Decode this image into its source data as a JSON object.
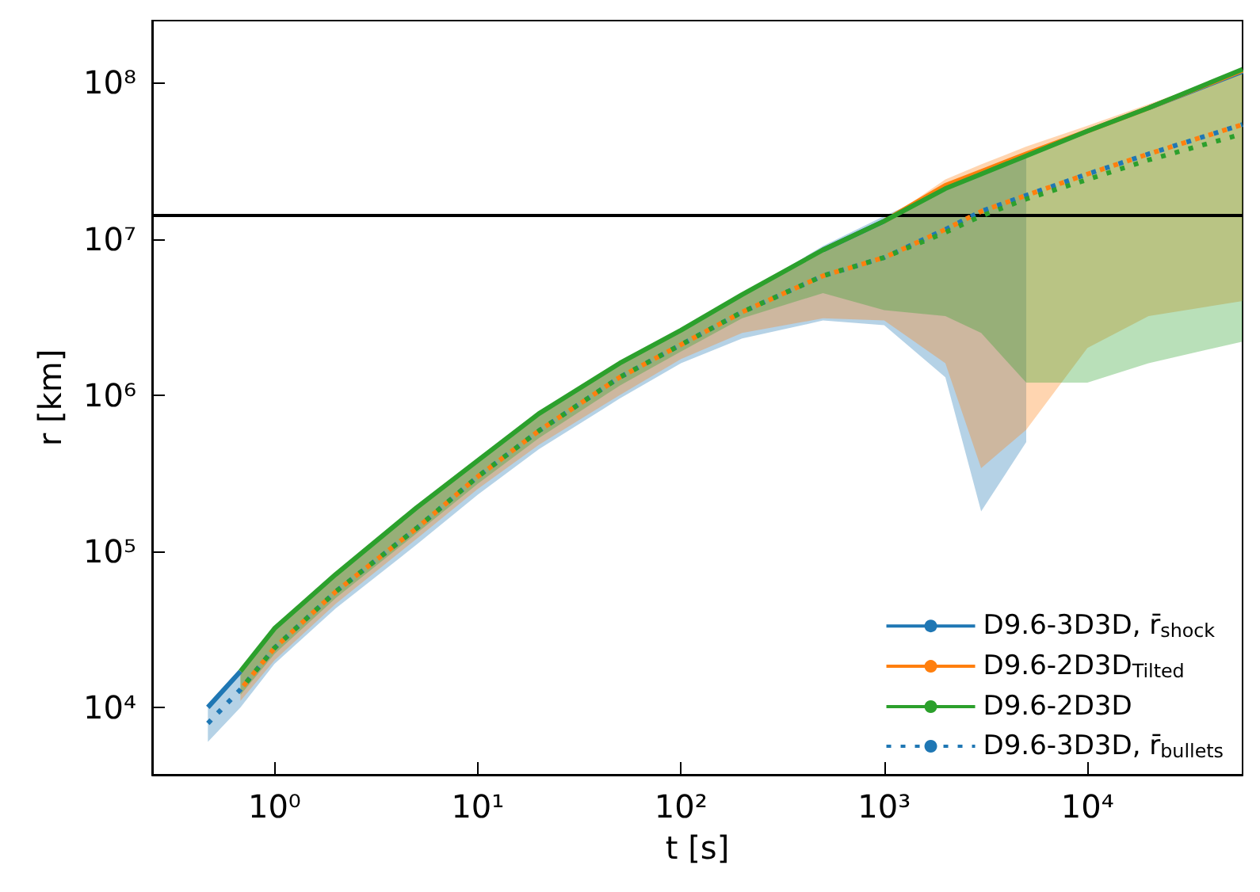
{
  "chart_data": {
    "type": "line",
    "xlabel": "t [s]",
    "ylabel": "r [km]",
    "log": "xy",
    "grid": false,
    "legend": "bottom right",
    "marker": "none",
    "x": [
      0.47,
      0.68,
      1,
      2,
      5,
      10,
      20,
      50,
      100,
      200,
      500,
      1000,
      2000,
      3000,
      5000,
      10000,
      20000,
      58000
    ],
    "xlim": [
      0.25,
      58000
    ],
    "ylim": [
      3700,
      250000000
    ],
    "xticks": [
      {
        "value": 1,
        "label": "10⁰"
      },
      {
        "value": 10,
        "label": "10¹"
      },
      {
        "value": 100,
        "label": "10²"
      },
      {
        "value": 1000,
        "label": "10³"
      },
      {
        "value": 10000,
        "label": "10⁴"
      }
    ],
    "yticks": [
      {
        "value": 10000,
        "label": "10⁴"
      },
      {
        "value": 100000,
        "label": "10⁵"
      },
      {
        "value": 1000000,
        "label": "10⁶"
      },
      {
        "value": 10000000,
        "label": "10⁷"
      },
      {
        "value": 100000000,
        "label": "10⁸"
      }
    ],
    "ref_lines": [
      {
        "axis": "y",
        "value": 14300000,
        "label": null,
        "color": "#000000",
        "line_style": "solid"
      }
    ],
    "series": [
      {
        "name": "D9.6-3D3D, r̄$_{shock}$",
        "color": "#1f77b4",
        "line_style": "solid",
        "values": [
          10000,
          17000,
          null,
          null,
          null,
          null,
          null,
          null,
          null,
          null,
          8500000,
          13000000,
          null,
          null,
          null,
          null,
          69000000,
          118000000
        ],
        "lower": [
          6000,
          10000,
          19000,
          43000,
          110000,
          230000,
          450000,
          950000,
          1600000,
          2300000,
          3000000,
          2800000,
          1300000,
          180000,
          500000,
          null,
          null,
          null
        ],
        "upper": [
          10000,
          17000,
          32000,
          71000,
          190000,
          380000,
          760000,
          1600000,
          2600000,
          4400000,
          9000000,
          14000000,
          21000000,
          26000000,
          34000000,
          null,
          null,
          null
        ]
      },
      {
        "name": "D9.6-2D3D$_{Tilted}$",
        "color": "#ff7f0e",
        "line_style": "solid",
        "values": [
          null,
          null,
          null,
          null,
          null,
          null,
          null,
          null,
          null,
          null,
          null,
          13000000,
          22000000,
          27000000,
          35000000,
          49000000,
          69000000,
          120000000
        ],
        "lower": [
          null,
          11000,
          20000,
          46000,
          120000,
          250000,
          480000,
          1000000,
          1700000,
          2500000,
          3100000,
          3000000,
          1600000,
          340000,
          600000,
          2000000,
          3200000,
          4000000
        ],
        "upper": [
          null,
          17000,
          32000,
          71000,
          190000,
          380000,
          760000,
          1600000,
          2600000,
          4400000,
          8500000,
          13000000,
          24000000,
          30000000,
          39000000,
          53000000,
          73000000,
          120000000
        ]
      },
      {
        "name": "D9.6-2D3D",
        "color": "#2ca02c",
        "line_style": "solid",
        "values": [
          null,
          17000,
          32000,
          71000,
          190000,
          380000,
          760000,
          1600000,
          2600000,
          4400000,
          8500000,
          13000000,
          21000000,
          26000000,
          34000000,
          49000000,
          69000000,
          122000000
        ],
        "lower": [
          null,
          12000,
          22000,
          50000,
          130000,
          270000,
          530000,
          1150000,
          1900000,
          3100000,
          4500000,
          3500000,
          3200000,
          2500000,
          1200000,
          1200000,
          1600000,
          2200000
        ],
        "upper": [
          null,
          17000,
          32000,
          71000,
          190000,
          380000,
          760000,
          1600000,
          2600000,
          4400000,
          8500000,
          13000000,
          21000000,
          26000000,
          34000000,
          49000000,
          69000000,
          122000000
        ]
      },
      {
        "name": "D9.6-3D3D, r̄$_{bullets}$",
        "color": "#1f77b4",
        "line_style": "dotted",
        "values": [
          7900,
          13000,
          24000,
          55000,
          140000,
          300000,
          590000,
          1300000,
          2100000,
          3400000,
          5800000,
          7600000,
          11500000,
          15000000,
          19000000,
          26000000,
          35000000,
          54000000
        ]
      },
      {
        "color": "#ff7f0e",
        "line_style": "dotted",
        "values": [
          null,
          13000,
          24000,
          55000,
          140000,
          300000,
          590000,
          1300000,
          2100000,
          3400000,
          5800000,
          7600000,
          11500000,
          15000000,
          19000000,
          26000000,
          35000000,
          54000000
        ]
      },
      {
        "color": "#2ca02c",
        "line_style": "dotted",
        "values": [
          null,
          13000,
          24000,
          55000,
          140000,
          300000,
          590000,
          1300000,
          2100000,
          3400000,
          5800000,
          7600000,
          11000000,
          14000000,
          18000000,
          24000000,
          32000000,
          47000000
        ]
      }
    ]
  }
}
